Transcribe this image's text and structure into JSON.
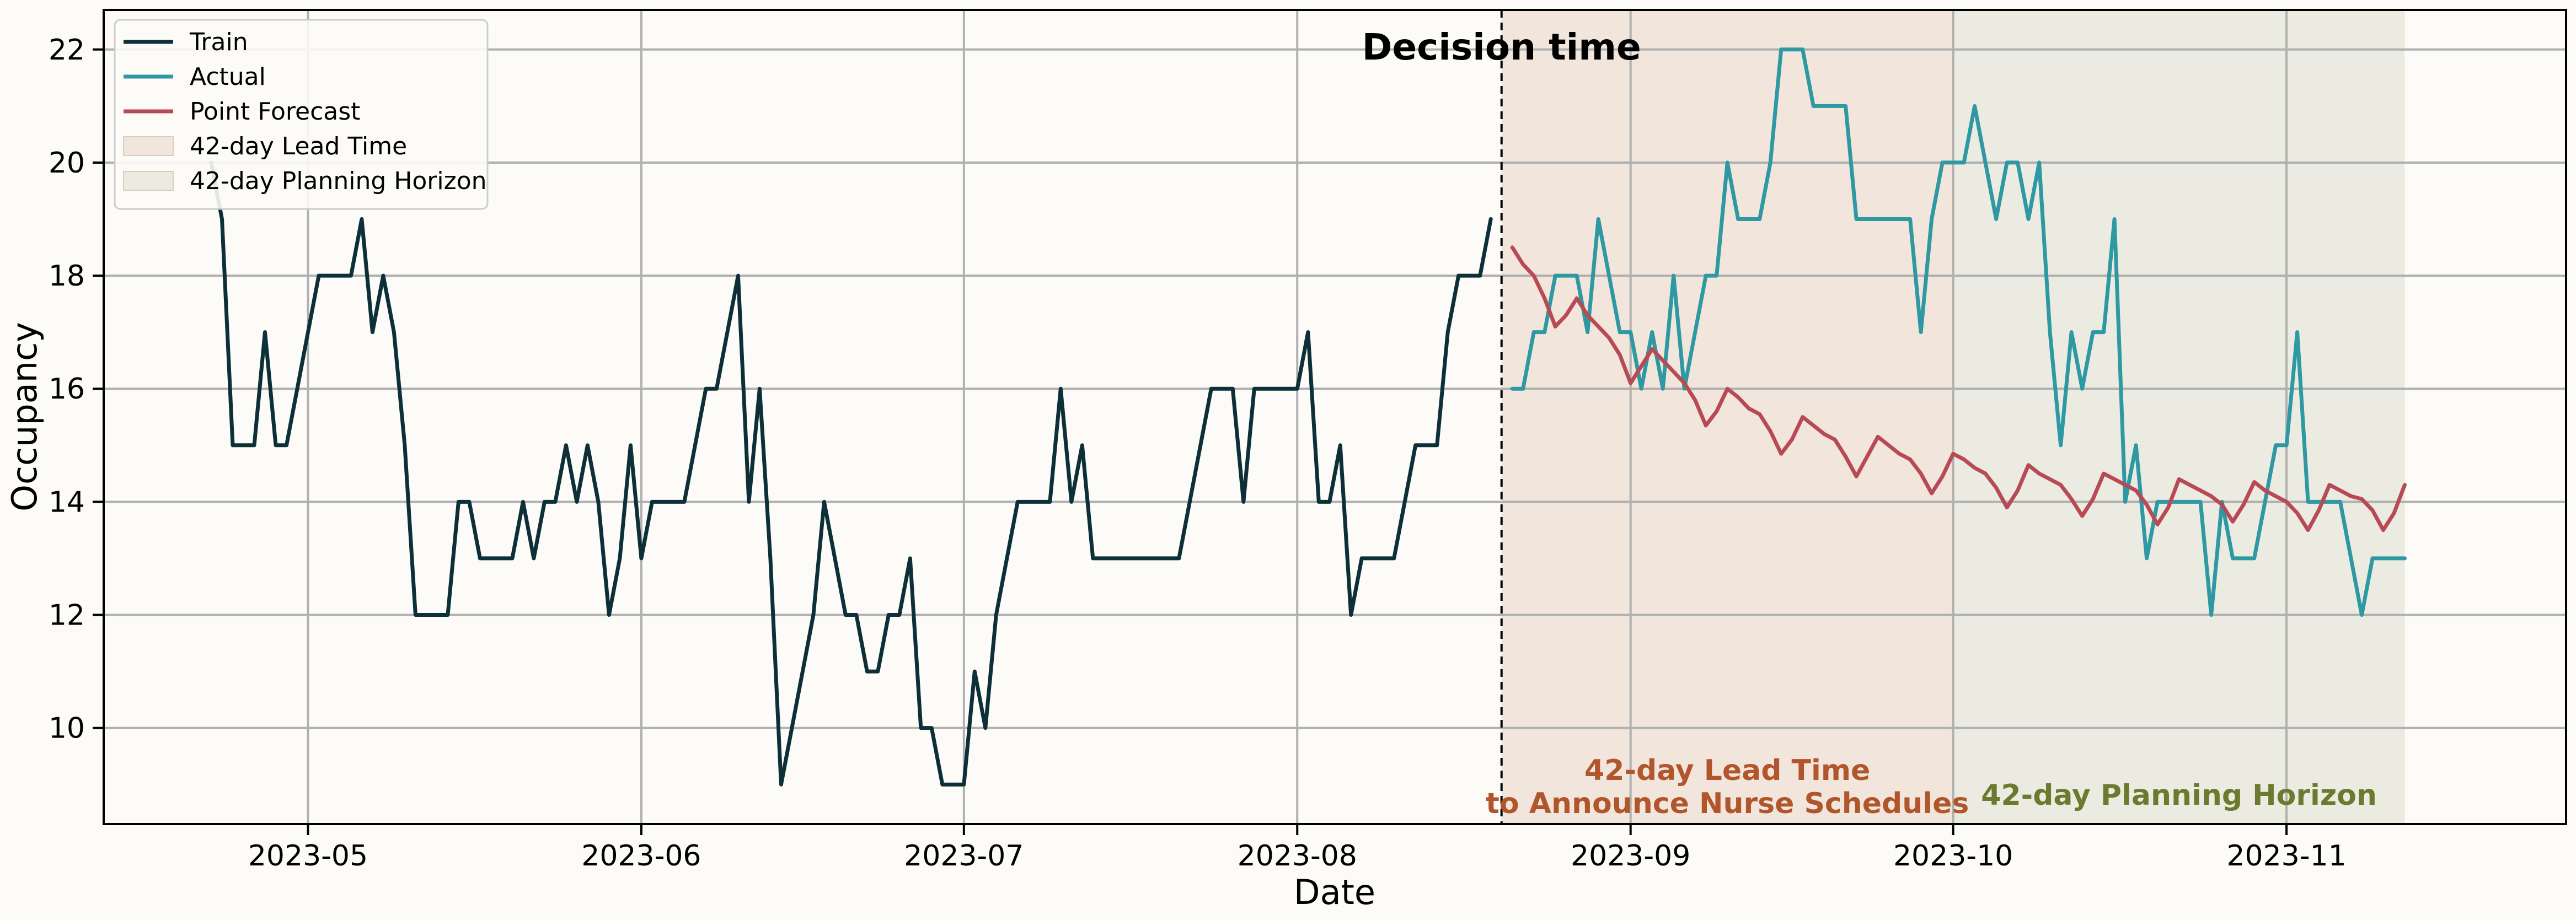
{
  "chart_data": {
    "type": "line",
    "xlabel": "Date",
    "ylabel": "Occupancy",
    "x_range": [
      "2023-04-12",
      "2023-11-27"
    ],
    "ylim": [
      8.3,
      22.7
    ],
    "grid": true,
    "legend_position": "top-left",
    "x_ticks": [
      "2023-05-01",
      "2023-06-01",
      "2023-07-01",
      "2023-08-01",
      "2023-09-01",
      "2023-10-01",
      "2023-11-01"
    ],
    "x_tick_labels": [
      "2023-05",
      "2023-06",
      "2023-07",
      "2023-08",
      "2023-09",
      "2023-10",
      "2023-11"
    ],
    "y_ticks": [
      10,
      12,
      14,
      16,
      18,
      20,
      22
    ],
    "y_tick_labels": [
      "10",
      "12",
      "14",
      "16",
      "18",
      "20",
      "22"
    ],
    "decision_date": "2023-08-20",
    "decision_label": "Decision time",
    "regions": [
      {
        "name": "42-day Lead Time",
        "start": "2023-08-20",
        "end": "2023-10-01",
        "color": "#f2e6dc",
        "label_lines": [
          "42-day Lead Time",
          "to Announce Nurse Schedules"
        ],
        "label_color": "#b1562c"
      },
      {
        "name": "42-day Planning Horizon",
        "start": "2023-10-01",
        "end": "2023-11-12",
        "color": "#ebebe2",
        "label_lines": [
          "42-day Planning Horizon"
        ],
        "label_color": "#6b7a2e"
      }
    ],
    "series": [
      {
        "name": "Train",
        "color": "#0d3038",
        "start_date": "2023-04-22",
        "values": [
          20,
          19,
          15,
          15,
          15,
          17,
          15,
          15,
          16,
          17,
          18,
          18,
          18,
          18,
          19,
          17,
          18,
          17,
          15,
          12,
          12,
          12,
          12,
          14,
          14,
          13,
          13,
          13,
          13,
          14,
          13,
          14,
          14,
          15,
          14,
          15,
          14,
          12,
          13,
          15,
          13,
          14,
          14,
          14,
          14,
          15,
          16,
          16,
          17,
          18,
          14,
          16,
          13,
          9,
          10,
          11,
          12,
          14,
          13,
          12,
          12,
          11,
          11,
          12,
          12,
          13,
          10,
          10,
          9,
          9,
          9,
          11,
          10,
          12,
          13,
          14,
          14,
          14,
          14,
          16,
          14,
          15,
          13,
          13,
          13,
          13,
          13,
          13,
          13,
          13,
          13,
          14,
          15,
          16,
          16,
          16,
          14,
          16,
          16,
          16,
          16,
          16,
          17,
          14,
          14,
          15,
          12,
          13,
          13,
          13,
          13,
          14,
          15,
          15,
          15,
          17,
          18,
          18,
          18,
          19
        ]
      },
      {
        "name": "Actual",
        "color": "#2e98a3",
        "start_date": "2023-08-21",
        "values": [
          16,
          16,
          17,
          17,
          18,
          18,
          18,
          17,
          19,
          18,
          17,
          17,
          16,
          17,
          16,
          18,
          16,
          17,
          18,
          18,
          20,
          19,
          19,
          19,
          20,
          22,
          22,
          22,
          21,
          21,
          21,
          21,
          19,
          19,
          19,
          19,
          19,
          19,
          17,
          19,
          20,
          20,
          20,
          21,
          20,
          19,
          20,
          20,
          19,
          20,
          17,
          15,
          17,
          16,
          17,
          17,
          19,
          14,
          15,
          13,
          14,
          14,
          14,
          14,
          14,
          12,
          14,
          13,
          13,
          13,
          14,
          15,
          15,
          17,
          14,
          14,
          14,
          14,
          13,
          12,
          13,
          13,
          13,
          13
        ]
      },
      {
        "name": "Point Forecast",
        "color": "#b84a55",
        "start_date": "2023-08-21",
        "values": [
          18.5,
          18.2,
          18.0,
          17.6,
          17.1,
          17.3,
          17.6,
          17.3,
          17.1,
          16.9,
          16.6,
          16.1,
          16.4,
          16.7,
          16.5,
          16.3,
          16.1,
          15.8,
          15.35,
          15.6,
          16.0,
          15.85,
          15.65,
          15.55,
          15.25,
          14.85,
          15.1,
          15.5,
          15.35,
          15.2,
          15.1,
          14.8,
          14.45,
          14.8,
          15.15,
          15.0,
          14.85,
          14.75,
          14.5,
          14.15,
          14.45,
          14.85,
          14.75,
          14.6,
          14.5,
          14.25,
          13.9,
          14.2,
          14.65,
          14.5,
          14.4,
          14.3,
          14.05,
          13.75,
          14.05,
          14.5,
          14.4,
          14.3,
          14.2,
          13.95,
          13.6,
          13.9,
          14.4,
          14.3,
          14.2,
          14.1,
          13.95,
          13.65,
          13.95,
          14.35,
          14.2,
          14.1,
          14.0,
          13.8,
          13.5,
          13.85,
          14.3,
          14.2,
          14.1,
          14.05,
          13.85,
          13.5,
          13.8,
          14.3
        ]
      }
    ],
    "legend_entries": [
      {
        "label": "Train",
        "kind": "line",
        "color": "#0d3038"
      },
      {
        "label": "Actual",
        "kind": "line",
        "color": "#2e98a3"
      },
      {
        "label": "Point Forecast",
        "kind": "line",
        "color": "#b84a55"
      },
      {
        "label": "42-day Lead Time",
        "kind": "patch",
        "color": "#f2e6dc"
      },
      {
        "label": "42-day Planning Horizon",
        "kind": "patch",
        "color": "#ebebe2"
      }
    ]
  }
}
